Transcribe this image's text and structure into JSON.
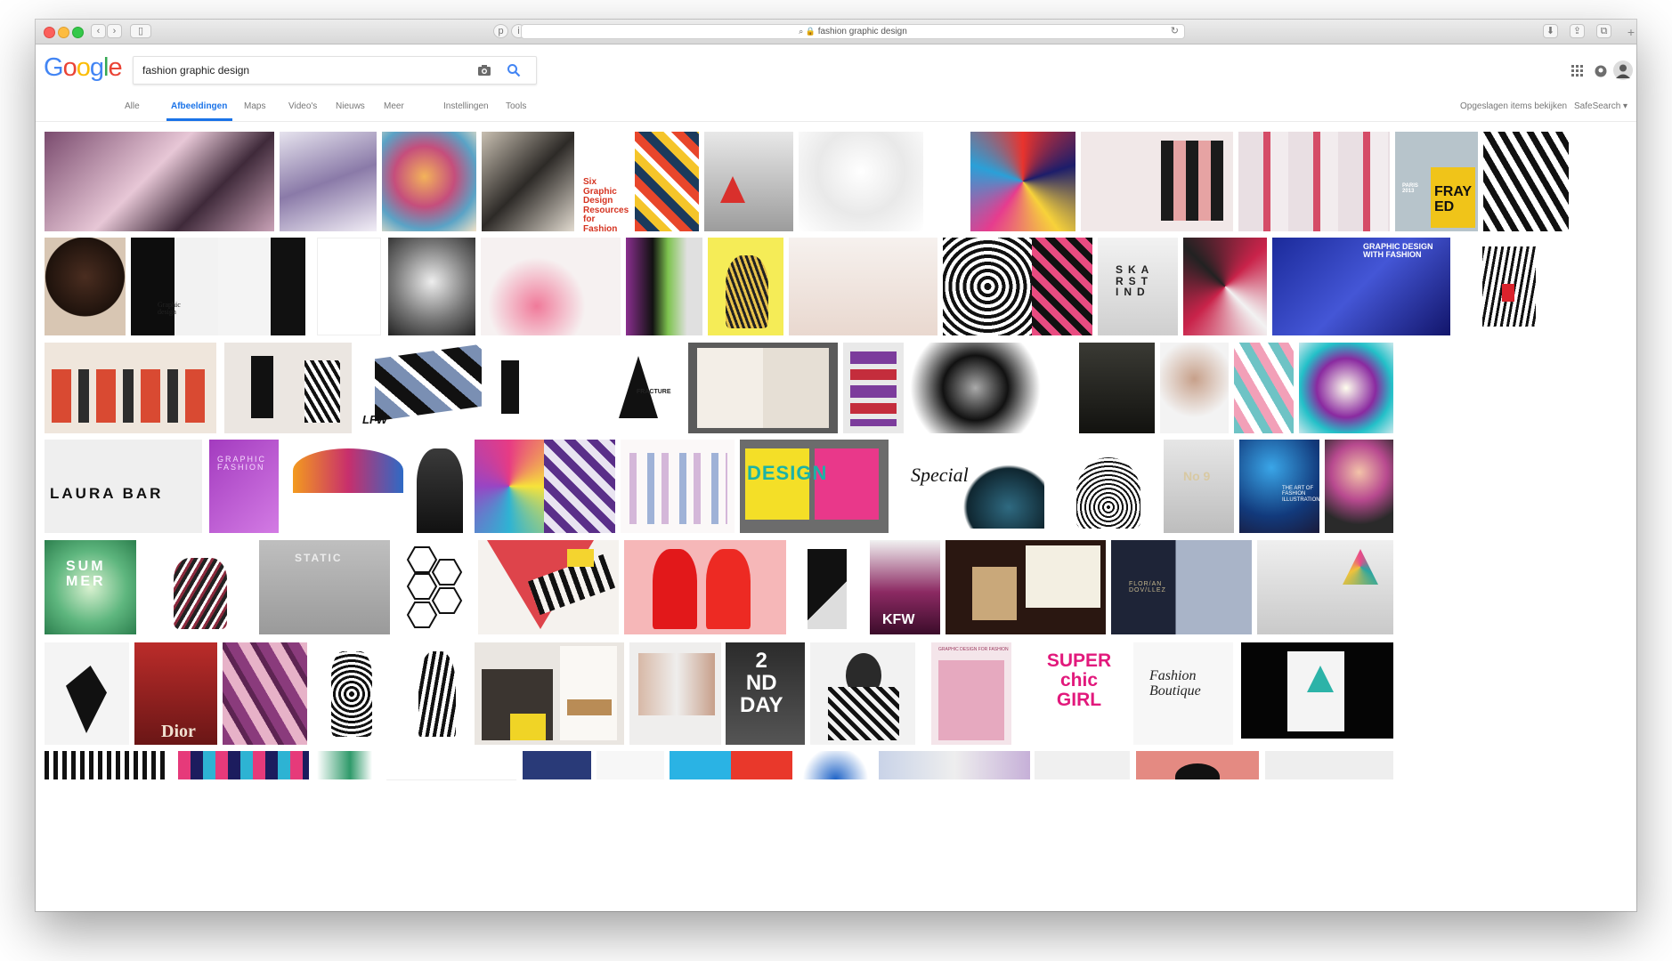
{
  "browser": {
    "address": "fashion graphic design",
    "lock_icon": "lock-icon",
    "reload_icon": "reload-icon"
  },
  "google": {
    "logo_letters": [
      {
        "ch": "G",
        "color": "#4285f4"
      },
      {
        "ch": "o",
        "color": "#ea4335"
      },
      {
        "ch": "o",
        "color": "#fbbc05"
      },
      {
        "ch": "g",
        "color": "#4285f4"
      },
      {
        "ch": "l",
        "color": "#34a853"
      },
      {
        "ch": "e",
        "color": "#ea4335"
      }
    ],
    "search_value": "fashion graphic design",
    "accent": "#1a73e8"
  },
  "nav": {
    "tabs": [
      "Alle",
      "Afbeeldingen",
      "Maps",
      "Video's",
      "Nieuws",
      "Meer"
    ],
    "active": "Afbeeldingen",
    "settings": "Instellingen",
    "tools": "Tools",
    "saved": "Opgeslagen items bekijken",
    "safesearch": "SafeSearch"
  },
  "images": {
    "captions": {
      "six": "Six\nGraphic\nDesign\nResources\nfor\nFashion\nBloggers",
      "graphic_with_fashion": "GRAPHIC DESIGN\nWITH FASHION",
      "frayed": "FRAYED",
      "paris": "PARIS\n2013",
      "graphic_design": "Graphic\ndesign",
      "skarst": "SKA\nRST\nIND",
      "fashion_purple": "GRAPHIC\nFASHION",
      "laura": "LAURA BAR",
      "design": "DESIGN",
      "special": "Special",
      "summer": "SUMMER",
      "kfw": "KFW",
      "super": "SUPER\nchic\nGIRL",
      "boutique": "Fashion\nBoutique",
      "second_day": "2\nND\nDAY",
      "lfw": "LFW",
      "fracture": "FRACTURE",
      "the_art": "THE ART OF\nFASHION\nILLUSTRATION",
      "graphic_design_for_fashion": "GRAPHIC DESIGN FOR FASHION",
      "florian": "FLOR/AN\nDOV/LLEZ",
      "static": "STATIC",
      "no9": "No 9",
      "dior": "Dior"
    }
  }
}
